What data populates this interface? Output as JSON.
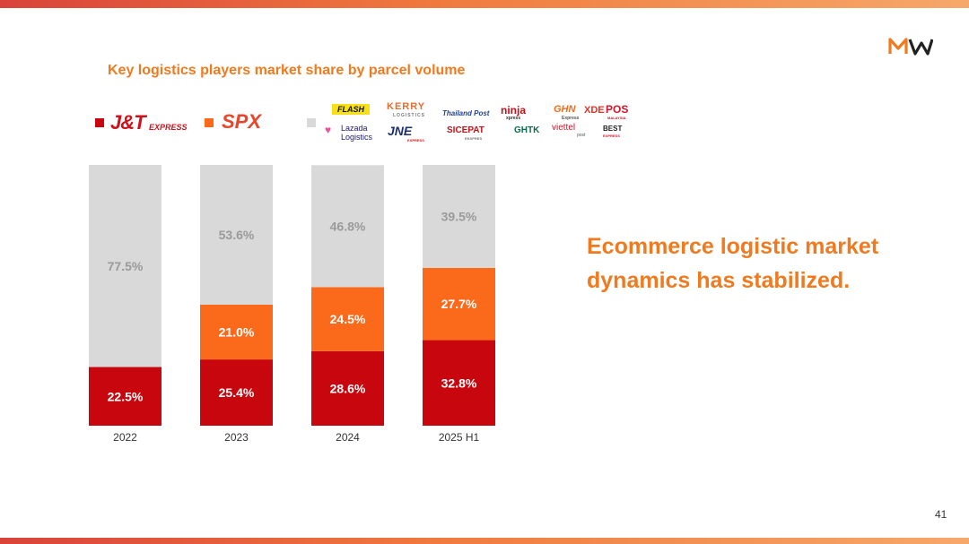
{
  "slide": {
    "title": "Key logistics players market share by parcel volume",
    "headline": "Ecommerce logistic market dynamics has stabilized.",
    "page_number": "41"
  },
  "legend": {
    "jt": "J&T",
    "jt_express": "EXPRESS",
    "spx": "SPX",
    "others_logos": [
      "FLASH",
      "KERRY",
      "LOGISTICS",
      "Thailand Post",
      "ninja",
      "xpress",
      "GHN",
      "Express",
      "XDE",
      "POS",
      "MALAYSIA",
      "Lazada",
      "Logistics",
      "JNE",
      "EXPRESS",
      "SICEPAT",
      "EKSPRES",
      "GHTK",
      "viettel",
      "post",
      "BEST",
      "EXPRESS"
    ]
  },
  "colors": {
    "jt": "#c8060e",
    "spx": "#fb6a1b",
    "others": "#d9d9d9",
    "accent": "#f07a1f"
  },
  "chart_data": {
    "type": "bar",
    "stacked": true,
    "categories": [
      "2022",
      "2023",
      "2024",
      "2025 H1"
    ],
    "series": [
      {
        "key": "jt",
        "values": [
          22.5,
          25.4,
          28.6,
          32.8
        ],
        "labels": [
          "22.5%",
          "25.4%",
          "28.6%",
          "32.8%"
        ]
      },
      {
        "key": "spx",
        "values": [
          null,
          21.0,
          24.5,
          27.7
        ],
        "labels": [
          "",
          "21.0%",
          "24.5%",
          "27.7%"
        ]
      },
      {
        "key": "others",
        "values": [
          77.5,
          53.6,
          46.8,
          39.5
        ],
        "labels": [
          "77.5%",
          "53.6%",
          "46.8%",
          "39.5%"
        ]
      }
    ],
    "ylim": [
      0,
      100
    ],
    "title": "Key logistics players market share by parcel volume"
  }
}
